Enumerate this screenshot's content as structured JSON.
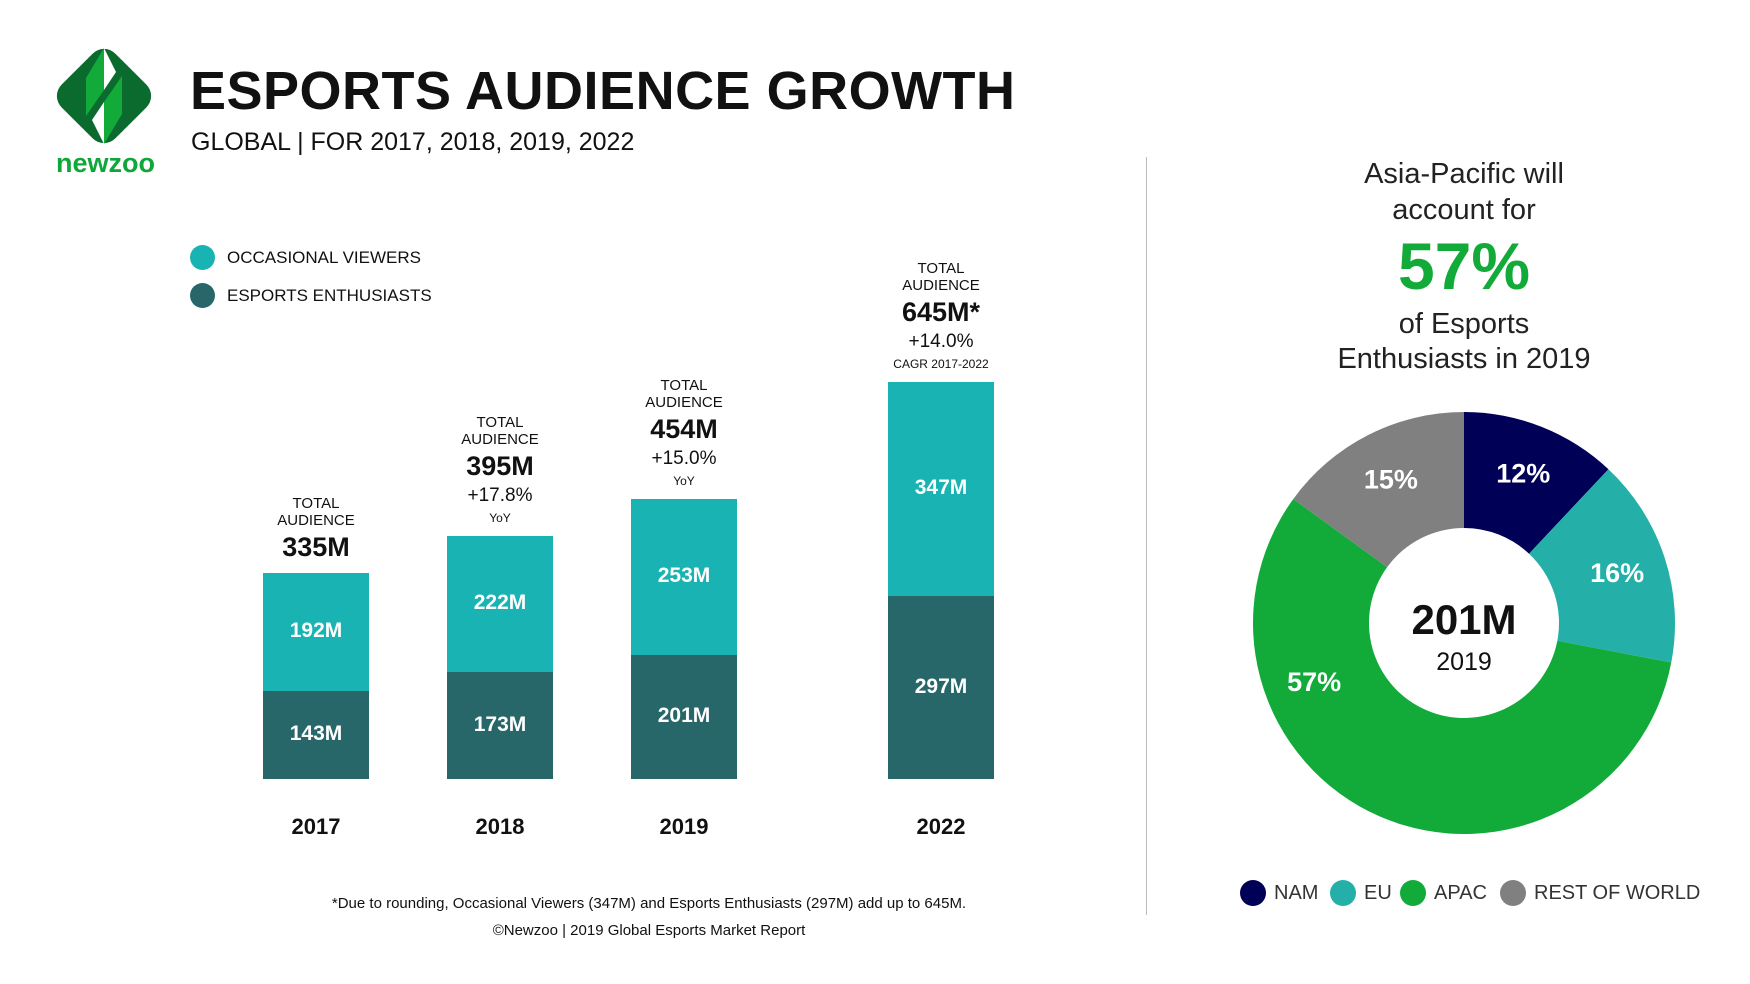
{
  "header": {
    "title": "ESPORTS AUDIENCE GROWTH",
    "subtitle": "GLOBAL | FOR 2017, 2018, 2019, 2022",
    "logo_text": "newzoo"
  },
  "colors": {
    "occasional": "#1ab3b3",
    "enthusiasts": "#27676a",
    "NAM": "#000057",
    "EU": "#24b0a8",
    "APAC": "#12ab3a",
    "ROW": "#808080",
    "brand_green": "#0fa73a"
  },
  "chart_data": [
    {
      "type": "bar",
      "stacked": true,
      "categories": [
        "2017",
        "2018",
        "2019",
        "2022"
      ],
      "series": [
        {
          "name": "ESPORTS ENTHUSIASTS",
          "values": [
            143,
            173,
            201,
            297
          ],
          "labels": [
            "143M",
            "173M",
            "201M",
            "297M"
          ]
        },
        {
          "name": "OCCASIONAL VIEWERS",
          "values": [
            192,
            222,
            253,
            347
          ],
          "labels": [
            "192M",
            "222M",
            "253M",
            "347M"
          ]
        }
      ],
      "totals": [
        {
          "label": "TOTAL AUDIENCE",
          "value": "335M",
          "growth": "",
          "note": ""
        },
        {
          "label": "TOTAL AUDIENCE",
          "value": "395M",
          "growth": "+17.8%",
          "note": "YoY"
        },
        {
          "label": "TOTAL AUDIENCE",
          "value": "454M",
          "growth": "+15.0%",
          "note": "YoY"
        },
        {
          "label": "TOTAL AUDIENCE",
          "value": "645M*",
          "growth": "+14.0%",
          "note": "CAGR 2017-2022"
        }
      ],
      "legend": [
        "OCCASIONAL VIEWERS",
        "ESPORTS ENTHUSIASTS"
      ],
      "legend_placement": "top-left",
      "grid": false
    },
    {
      "type": "pie",
      "donut": true,
      "center_value": "201M",
      "center_label": "2019",
      "slices": [
        {
          "name": "NAM",
          "value": 12,
          "label": "12%"
        },
        {
          "name": "EU",
          "value": 16,
          "label": "16%"
        },
        {
          "name": "APAC",
          "value": 57,
          "label": "57%"
        },
        {
          "name": "REST OF WORLD",
          "value": 15,
          "label": "15%"
        }
      ],
      "legend_placement": "bottom"
    }
  ],
  "callout": {
    "line1": "Asia-Pacific will",
    "line2": "account for",
    "pct": "57%",
    "line3": "of Esports",
    "line4": "Enthusiasts in 2019"
  },
  "footer": {
    "note": "*Due to rounding, Occasional Viewers (347M) and Esports Enthusiasts (297M) add up to 645M.",
    "copyright": "©Newzoo | 2019 Global Esports Market Report"
  }
}
